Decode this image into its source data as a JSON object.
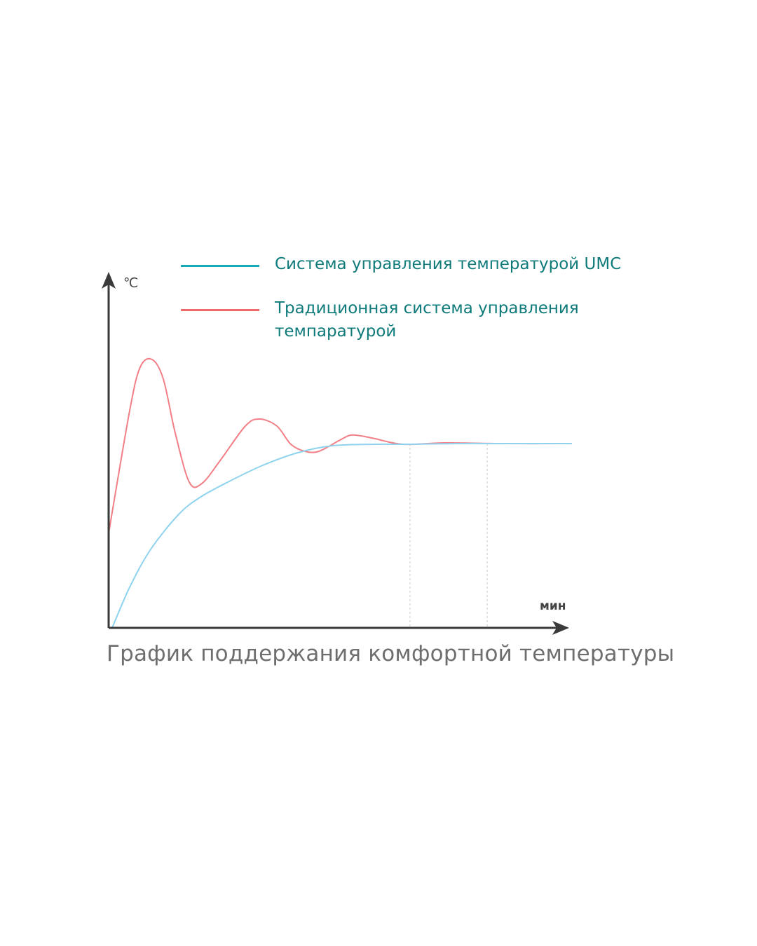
{
  "chart_data": {
    "type": "line",
    "title": "График поддержания комфортной температуры",
    "xlabel": "мин",
    "ylabel": "℃",
    "xlim": [
      0,
      660
    ],
    "ylim": [
      0,
      510
    ],
    "grid": false,
    "legend_placement": "top",
    "series": [
      {
        "name": "Система управления температурой UMC",
        "color": "#19a9b7",
        "curve_color": "#8fd3ee",
        "x": [
          5,
          30,
          60,
          100,
          130,
          170,
          220,
          270,
          320,
          380,
          430,
          500,
          560,
          660
        ],
        "y": [
          0,
          58,
          112,
          162,
          186,
          208,
          232,
          250,
          260,
          262,
          262,
          263,
          263,
          263
        ]
      },
      {
        "name": "Традиционная система управления темпаратурой",
        "color": "#ee6b6b",
        "curve_color": "#f27f86",
        "x": [
          0,
          30,
          45,
          62,
          78,
          95,
          115,
          133,
          160,
          195,
          215,
          240,
          260,
          280,
          300,
          330,
          345,
          360,
          380,
          420,
          480,
          560,
          660
        ],
        "y": [
          135,
          310,
          372,
          383,
          355,
          278,
          208,
          206,
          240,
          288,
          298,
          288,
          262,
          252,
          252,
          268,
          275,
          274,
          270,
          262,
          264,
          263,
          263
        ]
      }
    ]
  },
  "colors": {
    "axis": "#3a3a3a",
    "legend_text": "#0f7a7a",
    "title_text": "#6e6e6e",
    "guide_lines": "#dcdcdc"
  }
}
